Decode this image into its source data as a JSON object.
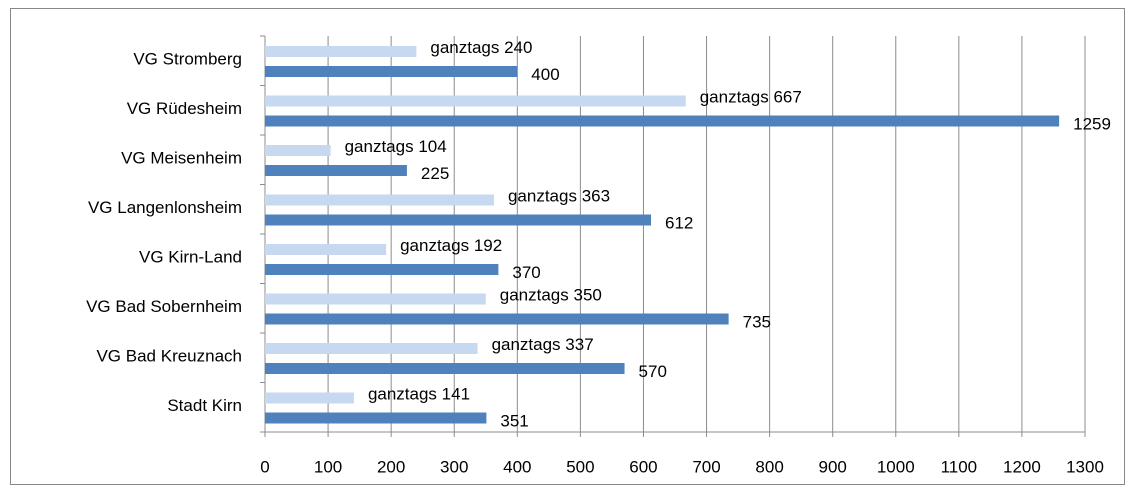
{
  "chart_data": {
    "type": "barh",
    "categories": [
      "VG Stromberg",
      "VG Rüdesheim",
      "VG Meisenheim",
      "VG Langenlonsheim",
      "VG Kirn-Land",
      "VG Bad Sobernheim",
      "VG Bad Kreuznach",
      "Stadt Kirn"
    ],
    "series": [
      {
        "color": "#c6d9f1",
        "values": [
          240,
          667,
          104,
          363,
          192,
          350,
          337,
          141
        ],
        "value_labels": [
          "ganztags 240",
          "ganztags 667",
          "ganztags 104",
          "ganztags 363",
          "ganztags 192",
          "ganztags 350",
          "ganztags 337",
          "ganztags 141"
        ]
      },
      {
        "color": "#4f81bd",
        "values": [
          400,
          1259,
          225,
          612,
          370,
          735,
          570,
          351
        ]
      }
    ],
    "xlim": [
      0,
      1300
    ],
    "xticks": [
      0,
      100,
      200,
      300,
      400,
      500,
      600,
      700,
      800,
      900,
      1000,
      1100,
      1200,
      1300
    ],
    "grid": true
  }
}
